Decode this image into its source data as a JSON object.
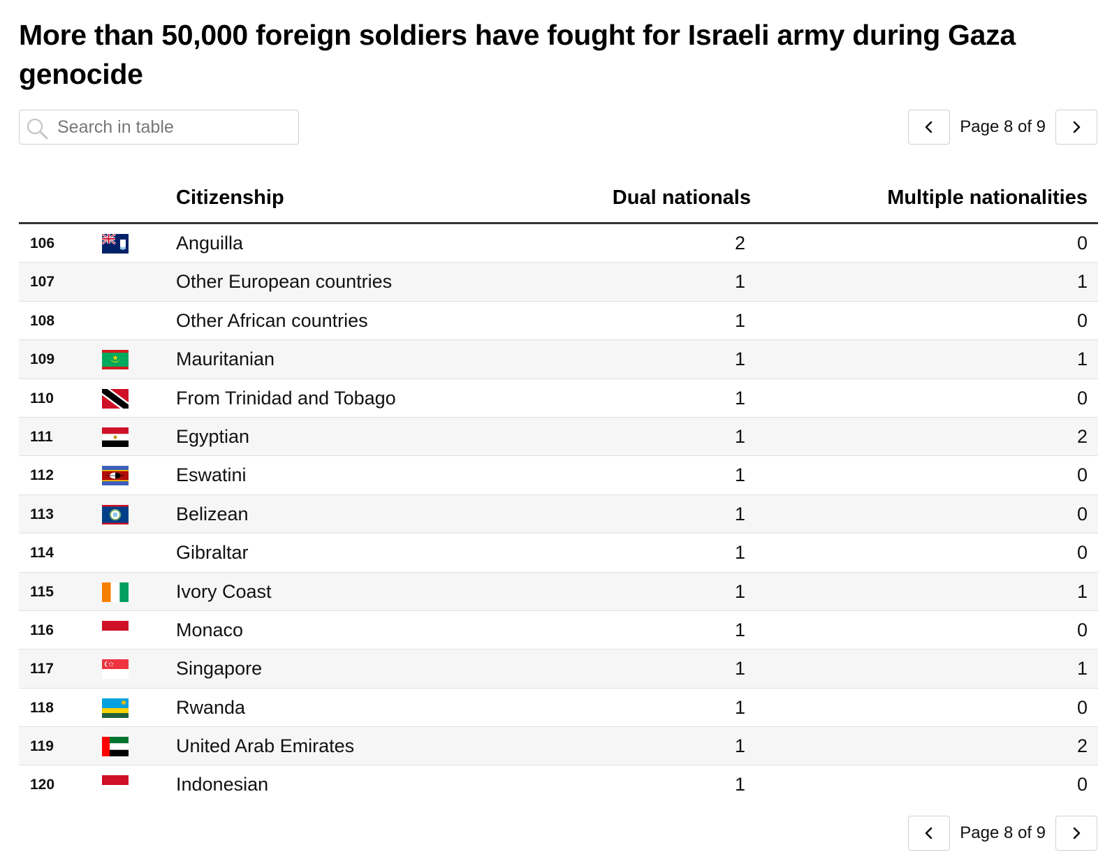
{
  "title": "More than 50,000 foreign soldiers have fought for Israeli army during Gaza genocide",
  "search": {
    "placeholder": "Search in table",
    "value": ""
  },
  "pagination": {
    "label": "Page 8 of 9",
    "current_page": 8,
    "total_pages": 9
  },
  "table": {
    "headers": {
      "number": "",
      "flag": "",
      "citizenship": "Citizenship",
      "dual": "Dual nationals",
      "multiple": "Multiple nationalities"
    },
    "rows": [
      {
        "num": "106",
        "flag": "anguilla-flag",
        "citizenship": "Anguilla",
        "dual": "2",
        "multiple": "0"
      },
      {
        "num": "107",
        "flag": "",
        "citizenship": "Other European countries",
        "dual": "1",
        "multiple": "1"
      },
      {
        "num": "108",
        "flag": "",
        "citizenship": "Other African countries",
        "dual": "1",
        "multiple": "0"
      },
      {
        "num": "109",
        "flag": "mauritania-flag",
        "citizenship": "Mauritanian",
        "dual": "1",
        "multiple": "1"
      },
      {
        "num": "110",
        "flag": "trinidad-and-tobago-flag",
        "citizenship": "From Trinidad and Tobago",
        "dual": "1",
        "multiple": "0"
      },
      {
        "num": "111",
        "flag": "egypt-flag",
        "citizenship": "Egyptian",
        "dual": "1",
        "multiple": "2"
      },
      {
        "num": "112",
        "flag": "eswatini-flag",
        "citizenship": "Eswatini",
        "dual": "1",
        "multiple": "0"
      },
      {
        "num": "113",
        "flag": "belize-flag",
        "citizenship": "Belizean",
        "dual": "1",
        "multiple": "0"
      },
      {
        "num": "114",
        "flag": "",
        "citizenship": "Gibraltar",
        "dual": "1",
        "multiple": "0"
      },
      {
        "num": "115",
        "flag": "ivory-coast-flag",
        "citizenship": "Ivory Coast",
        "dual": "1",
        "multiple": "1"
      },
      {
        "num": "116",
        "flag": "monaco-flag",
        "citizenship": "Monaco",
        "dual": "1",
        "multiple": "0"
      },
      {
        "num": "117",
        "flag": "singapore-flag",
        "citizenship": "Singapore",
        "dual": "1",
        "multiple": "1"
      },
      {
        "num": "118",
        "flag": "rwanda-flag",
        "citizenship": "Rwanda",
        "dual": "1",
        "multiple": "0"
      },
      {
        "num": "119",
        "flag": "uae-flag",
        "citizenship": "United Arab Emirates",
        "dual": "1",
        "multiple": "2"
      },
      {
        "num": "120",
        "flag": "indonesia-flag",
        "citizenship": "Indonesian",
        "dual": "1",
        "multiple": "0"
      }
    ]
  },
  "icons": {
    "search": "search-icon",
    "prev": "chevron-left-icon",
    "next": "chevron-right-icon"
  }
}
